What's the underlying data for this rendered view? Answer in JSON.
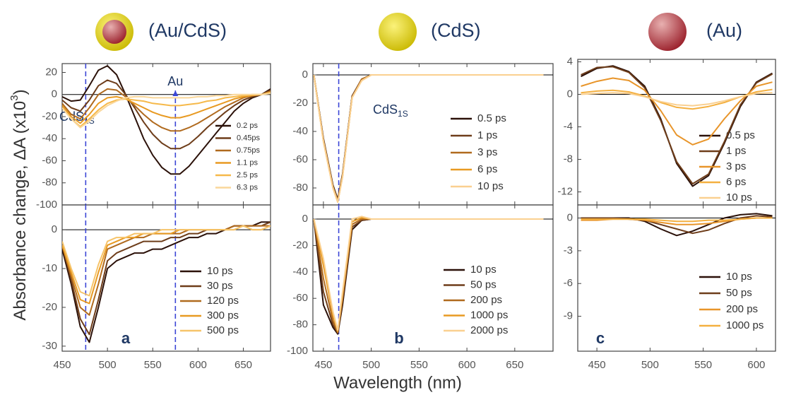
{
  "figure": {
    "ylabel": {
      "text": "Absorbance change, ΔA (x10",
      "sup": "3",
      "tail": ")"
    },
    "xlabel": "Wavelength (nm)"
  },
  "chart_data": [
    {
      "type": "line",
      "title": "(Au/CdS)",
      "xlim": [
        450,
        680
      ],
      "ylim": [
        -100,
        28
      ],
      "yticks": [
        20,
        0,
        -20,
        -40,
        -60,
        -80,
        -100
      ],
      "vlines": [
        476,
        575
      ],
      "vline_color": "#3b46d6",
      "annotations": {
        "au": "Au",
        "cds": {
          "text": "CdS",
          "sub": "1S"
        }
      },
      "x": [
        450,
        460,
        470,
        480,
        490,
        500,
        510,
        520,
        530,
        540,
        550,
        560,
        570,
        580,
        590,
        600,
        610,
        620,
        630,
        640,
        650,
        660,
        670,
        680
      ],
      "series": [
        {
          "name": "0.2 ps",
          "color": "#2b1109",
          "values": [
            -2,
            -6,
            -5,
            8,
            22,
            26,
            18,
            0,
            -20,
            -40,
            -55,
            -66,
            -72,
            -72,
            -65,
            -55,
            -45,
            -35,
            -25,
            -15,
            -8,
            -3,
            0,
            5
          ]
        },
        {
          "name": "0.45ps",
          "color": "#6e3d1a",
          "values": [
            -5,
            -12,
            -15,
            -5,
            8,
            13,
            10,
            0,
            -12,
            -25,
            -36,
            -44,
            -49,
            -49,
            -45,
            -38,
            -30,
            -23,
            -16,
            -10,
            -5,
            -2,
            0,
            4
          ]
        },
        {
          "name": "0.75ps",
          "color": "#b06a1e",
          "values": [
            -8,
            -18,
            -22,
            -12,
            0,
            5,
            4,
            -2,
            -10,
            -18,
            -25,
            -30,
            -33,
            -33,
            -30,
            -26,
            -21,
            -16,
            -11,
            -7,
            -3,
            -1,
            0,
            3
          ]
        },
        {
          "name": "1.1 ps",
          "color": "#e89a22",
          "values": [
            -10,
            -20,
            -26,
            -18,
            -8,
            -3,
            -2,
            -4,
            -8,
            -12,
            -16,
            -19,
            -21,
            -21,
            -19,
            -16,
            -13,
            -10,
            -7,
            -4,
            -2,
            -1,
            0,
            2
          ]
        },
        {
          "name": "2.5 ps",
          "color": "#f6b94a",
          "values": [
            -12,
            -22,
            -29,
            -22,
            -14,
            -8,
            -5,
            -4,
            -5,
            -6,
            -8,
            -9,
            -10,
            -10,
            -9,
            -8,
            -6,
            -5,
            -3,
            -2,
            -1,
            0,
            0,
            2
          ]
        },
        {
          "name": "6.3 ps",
          "color": "#fad79a",
          "values": [
            -12,
            -22,
            -30,
            -24,
            -16,
            -10,
            -6,
            -3,
            -2,
            -2,
            -3,
            -3,
            -3,
            -3,
            -3,
            -2,
            -2,
            -1,
            -1,
            0,
            0,
            0,
            0,
            1
          ]
        }
      ]
    },
    {
      "type": "line",
      "panel_label": "a",
      "xlim": [
        450,
        680
      ],
      "ylim": [
        -31.3,
        6.4
      ],
      "yticks": [
        0,
        -10,
        -20,
        -30
      ],
      "xticks": [
        450,
        500,
        550,
        600,
        650
      ],
      "vlines": [
        476,
        575
      ],
      "vline_color": "#3b46d6",
      "x": [
        450,
        460,
        470,
        480,
        490,
        500,
        510,
        520,
        530,
        540,
        550,
        560,
        570,
        580,
        590,
        600,
        610,
        620,
        630,
        640,
        650,
        660,
        670,
        680
      ],
      "series": [
        {
          "name": "10 ps",
          "color": "#2b1109",
          "values": [
            -5,
            -14,
            -25,
            -29,
            -20,
            -10,
            -8,
            -7,
            -6,
            -6,
            -5,
            -5,
            -4,
            -3,
            -2,
            -2,
            -1,
            -1,
            0,
            1,
            1,
            1,
            2,
            2
          ]
        },
        {
          "name": "30 ps",
          "color": "#6e3d1a",
          "values": [
            -4,
            -13,
            -23,
            -27,
            -18,
            -8,
            -6,
            -5,
            -4,
            -3,
            -3,
            -3,
            -2,
            -2,
            -1,
            -1,
            0,
            0,
            0,
            1,
            1,
            1,
            1,
            2
          ]
        },
        {
          "name": "120 ps",
          "color": "#b06a1e",
          "values": [
            -4,
            -12,
            -20,
            -22,
            -14,
            -5,
            -4,
            -3,
            -2,
            -2,
            -1,
            -1,
            -1,
            -1,
            0,
            0,
            0,
            0,
            0,
            1,
            1,
            1,
            1,
            1
          ]
        },
        {
          "name": "300 ps",
          "color": "#e89a22",
          "values": [
            -4,
            -11,
            -18,
            -19,
            -11,
            -4,
            -3,
            -2,
            -2,
            -1,
            -1,
            -1,
            -1,
            0,
            0,
            0,
            0,
            0,
            0,
            0,
            1,
            0,
            0,
            1
          ]
        },
        {
          "name": "500 ps",
          "color": "#f6c46a",
          "values": [
            -3,
            -10,
            -16,
            -17,
            -9,
            -3,
            -2,
            -2,
            -1,
            -1,
            -1,
            0,
            0,
            0,
            0,
            0,
            0,
            0,
            0,
            0,
            1,
            0,
            0,
            1
          ]
        }
      ]
    },
    {
      "type": "line",
      "title": "(CdS)",
      "xlim": [
        439,
        690
      ],
      "ylim": [
        -92,
        8
      ],
      "yticks": [
        0,
        -20,
        -40,
        -60,
        -80
      ],
      "vlines": [
        466
      ],
      "vline_color": "#3b46d6",
      "annotations": {
        "cds": {
          "text": "CdS",
          "sub": "1S"
        }
      },
      "x": [
        440,
        450,
        460,
        465,
        470,
        480,
        490,
        500,
        520,
        550,
        600,
        650,
        680
      ],
      "series": [
        {
          "name": "0.5 ps",
          "color": "#2b1109",
          "values": [
            0,
            -45,
            -78,
            -88,
            -70,
            -15,
            -3,
            0,
            0,
            0,
            0,
            0,
            0
          ]
        },
        {
          "name": "1 ps",
          "color": "#6e3d1a",
          "values": [
            0,
            -46,
            -79,
            -89,
            -71,
            -15,
            -3,
            0,
            0,
            0,
            0,
            0,
            0
          ]
        },
        {
          "name": "3 ps",
          "color": "#b06a1e",
          "values": [
            0,
            -46,
            -79,
            -89,
            -71,
            -16,
            -3,
            0,
            0,
            0,
            0,
            0,
            0
          ]
        },
        {
          "name": "6 ps",
          "color": "#e89a22",
          "values": [
            0,
            -47,
            -80,
            -90,
            -72,
            -16,
            -4,
            0,
            0,
            0,
            0,
            0,
            0
          ]
        },
        {
          "name": "10 ps",
          "color": "#fad090",
          "values": [
            0,
            -47,
            -80,
            -90,
            -72,
            -16,
            -4,
            0,
            0,
            0,
            0,
            0,
            0
          ]
        }
      ]
    },
    {
      "type": "line",
      "panel_label": "b",
      "xlim": [
        439,
        690
      ],
      "ylim": [
        -100,
        10.7
      ],
      "yticks": [
        0,
        -20,
        -40,
        -60,
        -80,
        -100
      ],
      "xticks": [
        450,
        500,
        550,
        600,
        650
      ],
      "vlines": [
        466
      ],
      "vline_color": "#3b46d6",
      "x": [
        440,
        450,
        460,
        465,
        470,
        480,
        490,
        500,
        520,
        550,
        600,
        650,
        680
      ],
      "series": [
        {
          "name": "10 ps",
          "color": "#2b1109",
          "values": [
            0,
            -65,
            -82,
            -87,
            -65,
            -8,
            -1,
            0,
            0,
            0,
            0,
            0,
            0
          ]
        },
        {
          "name": "50 ps",
          "color": "#6e3d1a",
          "values": [
            0,
            -55,
            -80,
            -86,
            -62,
            -6,
            -1,
            0,
            0,
            0,
            0,
            0,
            0
          ]
        },
        {
          "name": "200 ps",
          "color": "#b06a1e",
          "values": [
            0,
            -45,
            -77,
            -86,
            -60,
            -4,
            0,
            0,
            0,
            0,
            0,
            0,
            0
          ]
        },
        {
          "name": "1000 ps",
          "color": "#e89a22",
          "values": [
            0,
            -35,
            -73,
            -85,
            -57,
            -2,
            1,
            0,
            0,
            0,
            0,
            0,
            0
          ]
        },
        {
          "name": "2000 ps",
          "color": "#fad090",
          "values": [
            0,
            -30,
            -70,
            -84,
            -55,
            0,
            2,
            0,
            0,
            0,
            0,
            0,
            0
          ]
        }
      ]
    },
    {
      "type": "line",
      "title": "(Au)",
      "xlim": [
        432,
        618
      ],
      "ylim": [
        -13.6,
        4.3
      ],
      "yticks": [
        4,
        0,
        -4,
        -8,
        -12
      ],
      "x": [
        435,
        450,
        465,
        480,
        495,
        510,
        525,
        540,
        555,
        570,
        585,
        600,
        615
      ],
      "series": [
        {
          "name": "0.5 ps",
          "color": "#2b1109",
          "values": [
            2.2,
            3.2,
            3.5,
            2.8,
            1,
            -3,
            -8.5,
            -11.3,
            -10,
            -6,
            -1.5,
            1.5,
            2.6
          ]
        },
        {
          "name": "1 ps",
          "color": "#6e3d1a",
          "values": [
            2.4,
            3.3,
            3.4,
            2.7,
            0.8,
            -3.2,
            -8.3,
            -11,
            -9.8,
            -5.8,
            -1.3,
            1.4,
            2.5
          ]
        },
        {
          "name": "3 ps",
          "color": "#e8952a",
          "values": [
            1,
            1.6,
            2,
            1.7,
            0.5,
            -2,
            -5,
            -6.2,
            -5.5,
            -3,
            -0.8,
            1,
            1.5
          ]
        },
        {
          "name": "6 ps",
          "color": "#f4b040",
          "values": [
            0.2,
            0.4,
            0.5,
            0.3,
            -0.2,
            -1,
            -1.6,
            -1.8,
            -1.5,
            -1,
            -0.3,
            0.3,
            0.6
          ]
        },
        {
          "name": "10 ps",
          "color": "#fad090",
          "values": [
            0,
            0.1,
            0.2,
            0.1,
            -0.3,
            -0.9,
            -1.3,
            -1.4,
            -1.2,
            -0.8,
            -0.3,
            0.1,
            0.2
          ]
        }
      ]
    },
    {
      "type": "line",
      "panel_label": "c",
      "xlim": [
        432,
        618
      ],
      "ylim": [
        -12.2,
        1.2
      ],
      "yticks": [
        0,
        -3,
        -6,
        -9
      ],
      "xticks": [
        450,
        500,
        550,
        600
      ],
      "x": [
        435,
        450,
        465,
        480,
        495,
        510,
        525,
        540,
        555,
        570,
        585,
        600,
        615
      ],
      "series": [
        {
          "name": "10 ps",
          "color": "#2b1109",
          "values": [
            0,
            -0.1,
            0,
            0,
            -0.3,
            -1,
            -1.6,
            -1.2,
            -0.6,
            0,
            0.3,
            0.4,
            0.2
          ]
        },
        {
          "name": "50 ps",
          "color": "#6e3d1a",
          "values": [
            0,
            0,
            0,
            -0.1,
            -0.2,
            -0.6,
            -1,
            -1.4,
            -1.1,
            -0.5,
            0,
            0.2,
            0.1
          ]
        },
        {
          "name": "200 ps",
          "color": "#e8952a",
          "values": [
            -0.2,
            -0.2,
            -0.1,
            -0.1,
            -0.2,
            -0.4,
            -0.6,
            -0.6,
            -0.5,
            -0.3,
            -0.1,
            0,
            0
          ]
        },
        {
          "name": "1000 ps",
          "color": "#f4b040",
          "values": [
            -0.1,
            -0.1,
            -0.1,
            -0.1,
            -0.1,
            -0.2,
            -0.3,
            -0.3,
            -0.2,
            -0.2,
            -0.1,
            0,
            0
          ]
        }
      ]
    }
  ]
}
